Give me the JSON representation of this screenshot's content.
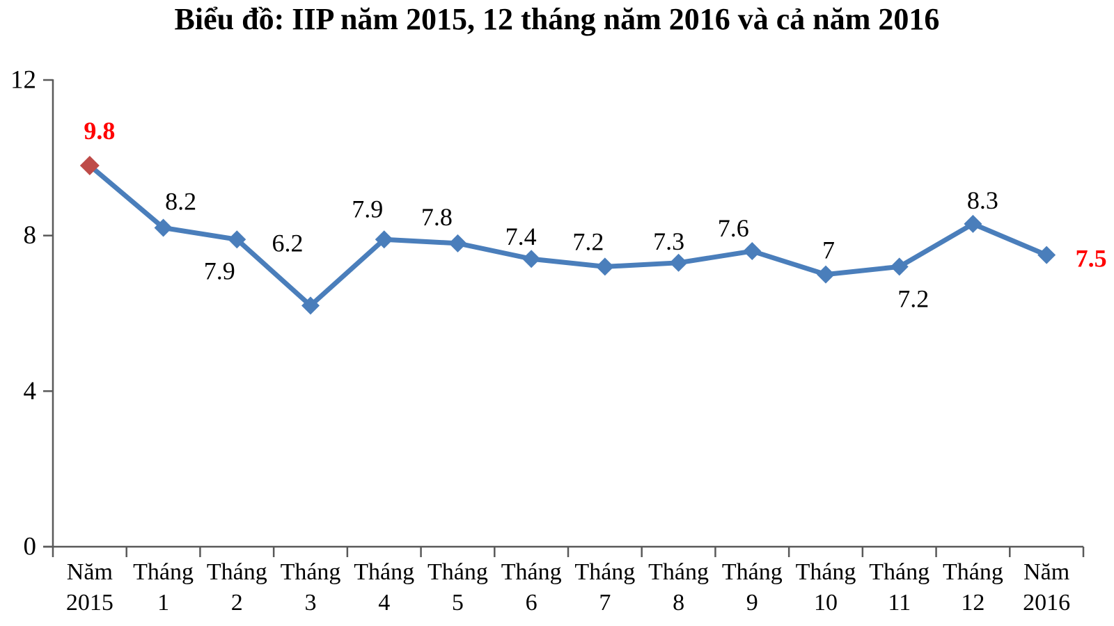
{
  "chart_data": {
    "type": "line",
    "title": "Biểu đồ: IIP năm 2015, 12 tháng năm 2016 và cả năm 2016",
    "categories": [
      "Năm 2015",
      "Tháng 1",
      "Tháng 2",
      "Tháng 3",
      "Tháng 4",
      "Tháng 5",
      "Tháng 6",
      "Tháng 7",
      "Tháng 8",
      "Tháng 9",
      "Tháng 10",
      "Tháng 11",
      "Tháng 12",
      "Năm 2016"
    ],
    "series": [
      {
        "name": "IIP",
        "values": [
          9.8,
          8.2,
          7.9,
          6.2,
          7.9,
          7.8,
          7.4,
          7.2,
          7.3,
          7.6,
          7,
          7.2,
          8.3,
          7.5
        ]
      }
    ],
    "data_labels": [
      "9.8",
      "8.2",
      "7.9",
      "6.2",
      "7.9",
      "7.8",
      "7.4",
      "7.2",
      "7.3",
      "7.6",
      "7",
      "7.2",
      "8.3",
      "7.5"
    ],
    "label_placements": [
      "above",
      "above",
      "below",
      "above-far",
      "above",
      "above",
      "above",
      "above",
      "above",
      "above",
      "above",
      "below",
      "above",
      "right"
    ],
    "highlighted_labels": [
      0,
      13
    ],
    "xlabel": "",
    "ylabel": "",
    "ylim": [
      0,
      12
    ],
    "yticks": [
      0,
      4,
      8,
      12
    ],
    "grid": false,
    "legend_position": "none",
    "colors": {
      "line": "#4A7EBB",
      "marker": "#4A7EBB",
      "first_marker": "#BE4B48",
      "label_text": "#000000",
      "highlight_label_text": "#FF0000",
      "axis": "#595959",
      "tick_label_text": "#000000"
    }
  }
}
